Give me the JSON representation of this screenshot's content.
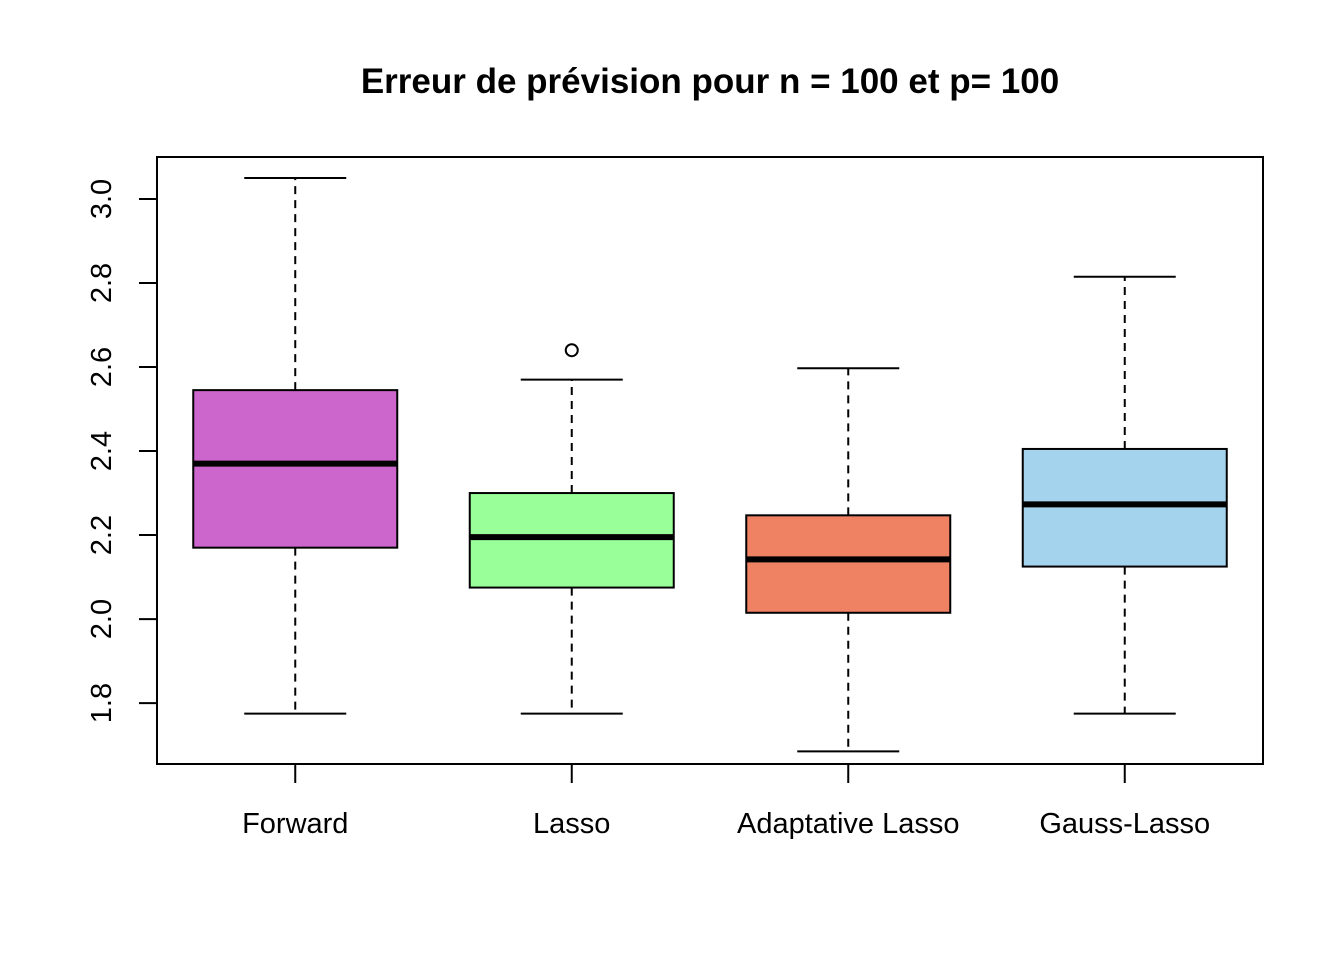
{
  "chart_data": {
    "type": "boxplot",
    "title": "Erreur de prévision pour n = 100 et p= 100",
    "xlabel": "",
    "ylabel": "",
    "ylim": [
      1.655,
      3.1
    ],
    "yticks": [
      1.8,
      2.0,
      2.2,
      2.4,
      2.6,
      2.8,
      3.0
    ],
    "ytick_labels": [
      "1.8",
      "2.0",
      "2.2",
      "2.4",
      "2.6",
      "2.8",
      "3.0"
    ],
    "grid": false,
    "legend": "none",
    "categories": [
      "Forward",
      "Lasso",
      "Adaptative Lasso",
      "Gauss-Lasso"
    ],
    "boxes": [
      {
        "category": "Forward",
        "whisker_low": 1.775,
        "q1": 2.17,
        "median": 2.37,
        "q3": 2.545,
        "whisker_high": 3.05,
        "outliers": [],
        "color": "#CC66CC"
      },
      {
        "category": "Lasso",
        "whisker_low": 1.775,
        "q1": 2.075,
        "median": 2.195,
        "q3": 2.3,
        "whisker_high": 2.57,
        "outliers": [
          2.64
        ],
        "color": "#99FF99"
      },
      {
        "category": "Adaptative Lasso",
        "whisker_low": 1.685,
        "q1": 2.015,
        "median": 2.142,
        "q3": 2.247,
        "whisker_high": 2.597,
        "outliers": [],
        "color": "#EE8262"
      },
      {
        "category": "Gauss-Lasso",
        "whisker_low": 1.775,
        "q1": 2.125,
        "median": 2.273,
        "q3": 2.405,
        "whisker_high": 2.815,
        "outliers": [],
        "color": "#A4D3EE"
      }
    ]
  }
}
